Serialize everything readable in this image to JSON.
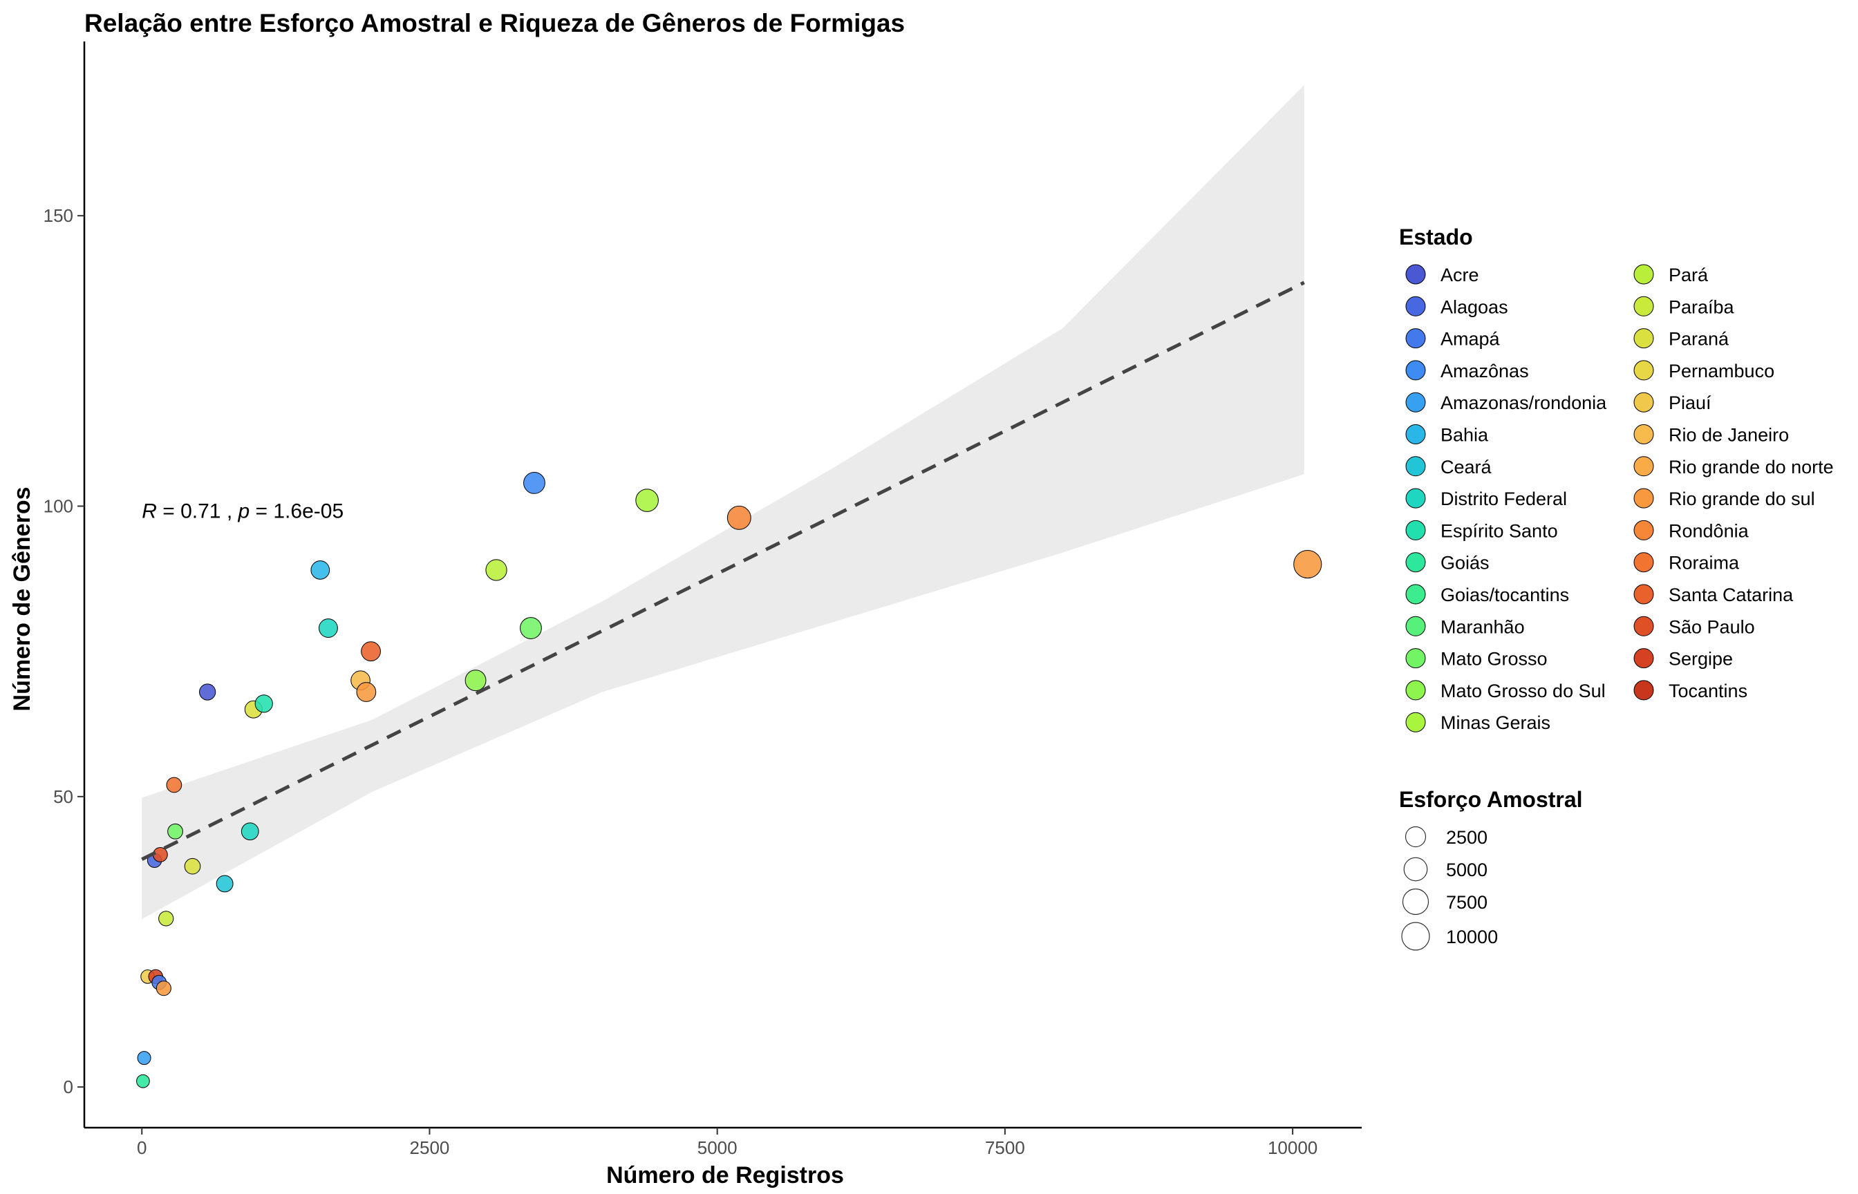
{
  "chart_data": {
    "type": "scatter",
    "title": "Relação entre Esforço Amostral e Riqueza de Gêneros de Formigas",
    "xlabel": "Número de Registros",
    "ylabel": "Número de Gêneros",
    "xlim": [
      -500,
      10600
    ],
    "ylim": [
      -7,
      180
    ],
    "x_ticks": [
      0,
      2500,
      5000,
      7500,
      10000
    ],
    "y_ticks": [
      0,
      50,
      100,
      150
    ],
    "grid": false,
    "annotation": {
      "r_symbol": "R",
      "r_text": " = 0.71 , ",
      "p_symbol": "p",
      "p_text": " = 1.6e-05",
      "x": 0,
      "y": 98
    },
    "regression": {
      "line": {
        "x": [
          0,
          10100
        ],
        "y": [
          39.2,
          138.5
        ],
        "style": "dashed",
        "color": "#444444"
      },
      "confidence_band": {
        "x": [
          0,
          2000,
          4000,
          6000,
          8000,
          10100
        ],
        "upper": [
          49.8,
          63.2,
          83.6,
          106.5,
          130.6,
          172.5
        ],
        "lower": [
          28.9,
          50.8,
          68.0,
          80.0,
          92.0,
          105.5
        ],
        "color": "#ebebeb"
      }
    },
    "legend_color": {
      "title": "Estado",
      "placement": "right",
      "items": [
        {
          "name": "Acre",
          "color": "#4A58D3"
        },
        {
          "name": "Alagoas",
          "color": "#4868E1"
        },
        {
          "name": "Amapá",
          "color": "#4479EC"
        },
        {
          "name": "Amazônas",
          "color": "#3F8BF4"
        },
        {
          "name": "Amazonas/rondonia",
          "color": "#38A0F0"
        },
        {
          "name": "Bahia",
          "color": "#2BB6E8"
        },
        {
          "name": "Ceará",
          "color": "#22C5D6"
        },
        {
          "name": "Distrito Federal",
          "color": "#1FD6C1"
        },
        {
          "name": "Espírito Santo",
          "color": "#22E0AE"
        },
        {
          "name": "Goiás",
          "color": "#2CE79C"
        },
        {
          "name": "Goias/tocantins",
          "color": "#3DEC8E"
        },
        {
          "name": "Maranhão",
          "color": "#56F07A"
        },
        {
          "name": "Mato Grosso",
          "color": "#72F465"
        },
        {
          "name": "Mato Grosso do Sul",
          "color": "#8EF54F"
        },
        {
          "name": "Minas Gerais",
          "color": "#A8F43E"
        },
        {
          "name": "Pará",
          "color": "#B9EF3A"
        },
        {
          "name": "Paraíba",
          "color": "#C9E93B"
        },
        {
          "name": "Paraná",
          "color": "#D9E03F"
        },
        {
          "name": "Pernambuco",
          "color": "#E7D646"
        },
        {
          "name": "Piauí",
          "color": "#F0C94C"
        },
        {
          "name": "Rio de Janeiro",
          "color": "#F6BB4C"
        },
        {
          "name": "Rio grande do norte",
          "color": "#F8AB46"
        },
        {
          "name": "Rio grande do sul",
          "color": "#F8993F"
        },
        {
          "name": "Rondônia",
          "color": "#F68638"
        },
        {
          "name": "Roraima",
          "color": "#F17431"
        },
        {
          "name": "Santa Catarina",
          "color": "#EA622B"
        },
        {
          "name": "São Paulo",
          "color": "#DF5026"
        },
        {
          "name": "Sergipe",
          "color": "#D54222"
        },
        {
          "name": "Tocantins",
          "color": "#C8361E"
        }
      ]
    },
    "legend_size": {
      "title": "Esforço Amostral",
      "items": [
        {
          "label": "2500",
          "value": 2500
        },
        {
          "label": "5000",
          "value": 5000
        },
        {
          "label": "7500",
          "value": 7500
        },
        {
          "label": "10000",
          "value": 10000
        }
      ]
    },
    "points": [
      {
        "x": 10,
        "y": 1,
        "color": "#2CE79C"
      },
      {
        "x": 20,
        "y": 5,
        "color": "#38A0F0"
      },
      {
        "x": 50,
        "y": 19,
        "color": "#F0C94C"
      },
      {
        "x": 110,
        "y": 39,
        "color": "#4868E1"
      },
      {
        "x": 120,
        "y": 19,
        "color": "#D54222"
      },
      {
        "x": 150,
        "y": 18,
        "color": "#4479EC"
      },
      {
        "x": 160,
        "y": 40,
        "color": "#DF5026"
      },
      {
        "x": 190,
        "y": 17,
        "color": "#F8993F"
      },
      {
        "x": 210,
        "y": 29,
        "color": "#C9E93B"
      },
      {
        "x": 280,
        "y": 52,
        "color": "#F17431"
      },
      {
        "x": 290,
        "y": 44,
        "color": "#72F465"
      },
      {
        "x": 440,
        "y": 38,
        "color": "#D9E03F"
      },
      {
        "x": 570,
        "y": 68,
        "color": "#4A58D3"
      },
      {
        "x": 720,
        "y": 35,
        "color": "#22C5D6"
      },
      {
        "x": 940,
        "y": 44,
        "color": "#1FD6C1"
      },
      {
        "x": 970,
        "y": 65,
        "color": "#D9E03F"
      },
      {
        "x": 1060,
        "y": 66,
        "color": "#22E0AE"
      },
      {
        "x": 1550,
        "y": 89,
        "color": "#2BB6E8"
      },
      {
        "x": 1620,
        "y": 79,
        "color": "#1FD6C1"
      },
      {
        "x": 1900,
        "y": 70,
        "color": "#F6BB4C"
      },
      {
        "x": 1950,
        "y": 68,
        "color": "#F8993F"
      },
      {
        "x": 1990,
        "y": 75,
        "color": "#EA622B"
      },
      {
        "x": 2900,
        "y": 70,
        "color": "#8EF54F"
      },
      {
        "x": 3080,
        "y": 89,
        "color": "#B9EF3A"
      },
      {
        "x": 3380,
        "y": 79,
        "color": "#72F465"
      },
      {
        "x": 3410,
        "y": 104,
        "color": "#3F8BF4"
      },
      {
        "x": 4390,
        "y": 101,
        "color": "#A8F43E"
      },
      {
        "x": 5190,
        "y": 98,
        "color": "#F68638"
      },
      {
        "x": 10130,
        "y": 90,
        "color": "#F8993F"
      }
    ]
  }
}
